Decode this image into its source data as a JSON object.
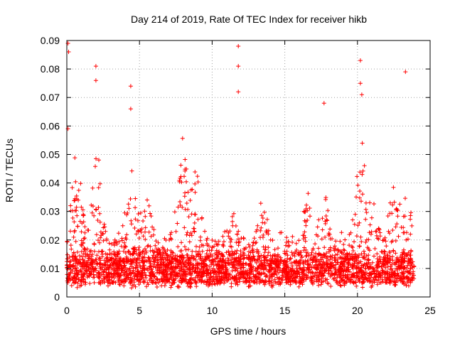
{
  "chart_data": {
    "type": "scatter",
    "title": "Day 214 of 2019, Rate Of TEC Index for receiver hikb",
    "xlabel": "GPS time / hours",
    "ylabel": "ROTI / TECUs",
    "xlim": [
      0,
      25
    ],
    "ylim": [
      0,
      0.09
    ],
    "xticks": [
      0,
      5,
      10,
      15,
      20,
      25
    ],
    "xtick_labels": [
      "0",
      "5",
      "10",
      "15",
      "20",
      "25"
    ],
    "yticks": [
      0,
      0.01,
      0.02,
      0.03,
      0.04,
      0.05,
      0.06,
      0.07,
      0.08,
      0.09
    ],
    "ytick_labels": [
      "0",
      "0.01",
      "0.02",
      "0.03",
      "0.04",
      "0.05",
      "0.06",
      "0.07",
      "0.08",
      "0.09"
    ],
    "grid": true,
    "marker": "+",
    "color": "#ff0000",
    "series": [
      {
        "name": "ROTI",
        "x_range_observed": [
          0,
          23.9
        ],
        "baseline_range": [
          0.005,
          0.015
        ],
        "notable_peaks": [
          {
            "x": 0.08,
            "y": 0.089
          },
          {
            "x": 0.12,
            "y": 0.086
          },
          {
            "x": 0.08,
            "y": 0.059
          },
          {
            "x": 2.0,
            "y": 0.081
          },
          {
            "x": 2.0,
            "y": 0.076
          },
          {
            "x": 4.4,
            "y": 0.074
          },
          {
            "x": 4.4,
            "y": 0.066
          },
          {
            "x": 11.8,
            "y": 0.088
          },
          {
            "x": 11.8,
            "y": 0.081
          },
          {
            "x": 11.8,
            "y": 0.072
          },
          {
            "x": 17.7,
            "y": 0.068
          },
          {
            "x": 20.2,
            "y": 0.083
          },
          {
            "x": 20.2,
            "y": 0.075
          },
          {
            "x": 20.3,
            "y": 0.071
          },
          {
            "x": 23.3,
            "y": 0.079
          }
        ]
      }
    ]
  }
}
